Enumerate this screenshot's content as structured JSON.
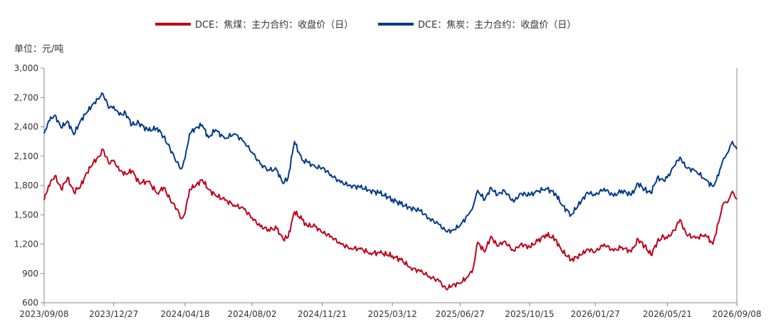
{
  "chart_data": {
    "type": "line",
    "title": "",
    "unit_label": "单位：元/吨",
    "xlabel": "",
    "ylabel": "",
    "ylim": [
      600,
      3000
    ],
    "yticks": [
      600,
      900,
      1200,
      1500,
      1800,
      2100,
      2400,
      2700,
      3000
    ],
    "ytick_labels": [
      "600",
      "900",
      "1,200",
      "1,500",
      "1,800",
      "2,100",
      "2,400",
      "2,700",
      "3,000"
    ],
    "xlim": [
      "2023-09-08",
      "2026-09-08"
    ],
    "xticks": [
      "2023-09-08",
      "2023-12-27",
      "2024-04-18",
      "2024-08-02",
      "2024-11-21",
      "2025-03-12",
      "2025-06-27",
      "2025-10-15",
      "2026-01-27",
      "2026-05-21",
      "2026-09-08"
    ],
    "xtick_labels": [
      "2023/09/08",
      "2023/12/27",
      "2024/04/18",
      "2024/08/02",
      "2024/11/21",
      "2025/03/12",
      "2025/06/27",
      "2025/10/15",
      "2026/01/27",
      "2026/05/21",
      "2026/09/08"
    ],
    "legend_position": "top-center",
    "grid": false,
    "series": [
      {
        "name": "DCE：焦煤：主力合约：收盘价（日）",
        "color": "#c0001a",
        "points": [
          [
            "2023-09-08",
            1650
          ],
          [
            "2023-09-15",
            1800
          ],
          [
            "2023-09-25",
            1900
          ],
          [
            "2023-10-05",
            1760
          ],
          [
            "2023-10-15",
            1880
          ],
          [
            "2023-10-25",
            1730
          ],
          [
            "2023-11-05",
            1800
          ],
          [
            "2023-11-15",
            1930
          ],
          [
            "2023-11-25",
            2040
          ],
          [
            "2023-12-05",
            2100
          ],
          [
            "2023-12-10",
            2170
          ],
          [
            "2023-12-20",
            2020
          ],
          [
            "2023-12-27",
            2060
          ],
          [
            "2024-01-05",
            1950
          ],
          [
            "2024-01-15",
            1920
          ],
          [
            "2024-01-25",
            1950
          ],
          [
            "2024-02-05",
            1830
          ],
          [
            "2024-02-20",
            1840
          ],
          [
            "2024-03-05",
            1720
          ],
          [
            "2024-03-15",
            1780
          ],
          [
            "2024-03-25",
            1660
          ],
          [
            "2024-04-05",
            1560
          ],
          [
            "2024-04-12",
            1460
          ],
          [
            "2024-04-18",
            1520
          ],
          [
            "2024-04-25",
            1760
          ],
          [
            "2024-05-05",
            1800
          ],
          [
            "2024-05-15",
            1860
          ],
          [
            "2024-05-25",
            1760
          ],
          [
            "2024-06-05",
            1700
          ],
          [
            "2024-06-20",
            1650
          ],
          [
            "2024-07-05",
            1600
          ],
          [
            "2024-07-20",
            1560
          ],
          [
            "2024-08-02",
            1470
          ],
          [
            "2024-08-15",
            1380
          ],
          [
            "2024-08-28",
            1350
          ],
          [
            "2024-09-10",
            1360
          ],
          [
            "2024-09-20",
            1250
          ],
          [
            "2024-09-28",
            1270
          ],
          [
            "2024-10-08",
            1530
          ],
          [
            "2024-10-20",
            1450
          ],
          [
            "2024-10-28",
            1390
          ],
          [
            "2024-11-10",
            1380
          ],
          [
            "2024-11-21",
            1320
          ],
          [
            "2024-12-05",
            1280
          ],
          [
            "2024-12-20",
            1200
          ],
          [
            "2025-01-05",
            1160
          ],
          [
            "2025-01-20",
            1150
          ],
          [
            "2025-02-05",
            1110
          ],
          [
            "2025-02-20",
            1110
          ],
          [
            "2025-03-12",
            1080
          ],
          [
            "2025-03-25",
            1040
          ],
          [
            "2025-04-10",
            960
          ],
          [
            "2025-04-25",
            920
          ],
          [
            "2025-05-10",
            870
          ],
          [
            "2025-05-25",
            820
          ],
          [
            "2025-06-05",
            740
          ],
          [
            "2025-06-15",
            780
          ],
          [
            "2025-06-27",
            800
          ],
          [
            "2025-07-10",
            870
          ],
          [
            "2025-07-18",
            960
          ],
          [
            "2025-07-25",
            1220
          ],
          [
            "2025-08-05",
            1120
          ],
          [
            "2025-08-15",
            1280
          ],
          [
            "2025-08-25",
            1180
          ],
          [
            "2025-09-05",
            1230
          ],
          [
            "2025-09-20",
            1130
          ],
          [
            "2025-10-01",
            1200
          ],
          [
            "2025-10-15",
            1170
          ],
          [
            "2025-10-28",
            1230
          ],
          [
            "2025-11-10",
            1300
          ],
          [
            "2025-11-25",
            1250
          ],
          [
            "2025-12-05",
            1130
          ],
          [
            "2025-12-20",
            1040
          ],
          [
            "2026-01-05",
            1090
          ],
          [
            "2026-01-15",
            1150
          ],
          [
            "2026-01-27",
            1120
          ],
          [
            "2026-02-10",
            1200
          ],
          [
            "2026-02-25",
            1130
          ],
          [
            "2026-03-10",
            1170
          ],
          [
            "2026-03-25",
            1120
          ],
          [
            "2026-04-05",
            1250
          ],
          [
            "2026-04-15",
            1180
          ],
          [
            "2026-04-25",
            1090
          ],
          [
            "2026-05-05",
            1220
          ],
          [
            "2026-05-15",
            1280
          ],
          [
            "2026-05-21",
            1260
          ],
          [
            "2026-06-01",
            1340
          ],
          [
            "2026-06-10",
            1450
          ],
          [
            "2026-06-20",
            1300
          ],
          [
            "2026-07-05",
            1260
          ],
          [
            "2026-07-20",
            1300
          ],
          [
            "2026-08-01",
            1200
          ],
          [
            "2026-08-10",
            1420
          ],
          [
            "2026-08-18",
            1620
          ],
          [
            "2026-08-26",
            1650
          ],
          [
            "2026-09-01",
            1740
          ],
          [
            "2026-09-08",
            1660
          ]
        ]
      },
      {
        "name": "DCE：焦炭：主力合约：收盘价（日）",
        "color": "#003a8c",
        "points": [
          [
            "2023-09-08",
            2330
          ],
          [
            "2023-09-15",
            2460
          ],
          [
            "2023-09-25",
            2520
          ],
          [
            "2023-10-05",
            2390
          ],
          [
            "2023-10-15",
            2460
          ],
          [
            "2023-10-25",
            2320
          ],
          [
            "2023-11-05",
            2470
          ],
          [
            "2023-11-15",
            2550
          ],
          [
            "2023-11-25",
            2640
          ],
          [
            "2023-12-05",
            2700
          ],
          [
            "2023-12-10",
            2740
          ],
          [
            "2023-12-20",
            2590
          ],
          [
            "2023-12-27",
            2610
          ],
          [
            "2024-01-05",
            2520
          ],
          [
            "2024-01-15",
            2540
          ],
          [
            "2024-01-25",
            2420
          ],
          [
            "2024-02-05",
            2440
          ],
          [
            "2024-02-20",
            2360
          ],
          [
            "2024-03-05",
            2390
          ],
          [
            "2024-03-15",
            2300
          ],
          [
            "2024-03-25",
            2180
          ],
          [
            "2024-04-05",
            2040
          ],
          [
            "2024-04-12",
            1970
          ],
          [
            "2024-04-18",
            2080
          ],
          [
            "2024-04-25",
            2330
          ],
          [
            "2024-05-05",
            2390
          ],
          [
            "2024-05-15",
            2420
          ],
          [
            "2024-05-25",
            2290
          ],
          [
            "2024-06-05",
            2370
          ],
          [
            "2024-06-20",
            2280
          ],
          [
            "2024-07-05",
            2330
          ],
          [
            "2024-07-20",
            2250
          ],
          [
            "2024-08-02",
            2140
          ],
          [
            "2024-08-15",
            2020
          ],
          [
            "2024-08-28",
            1960
          ],
          [
            "2024-09-10",
            1960
          ],
          [
            "2024-09-20",
            1820
          ],
          [
            "2024-09-28",
            1880
          ],
          [
            "2024-10-08",
            2250
          ],
          [
            "2024-10-20",
            2060
          ],
          [
            "2024-10-28",
            2040
          ],
          [
            "2024-11-10",
            1990
          ],
          [
            "2024-11-21",
            1980
          ],
          [
            "2024-12-05",
            1910
          ],
          [
            "2024-12-20",
            1830
          ],
          [
            "2025-01-05",
            1800
          ],
          [
            "2025-01-20",
            1780
          ],
          [
            "2025-02-05",
            1750
          ],
          [
            "2025-02-20",
            1720
          ],
          [
            "2025-03-12",
            1660
          ],
          [
            "2025-03-25",
            1610
          ],
          [
            "2025-04-10",
            1570
          ],
          [
            "2025-04-25",
            1540
          ],
          [
            "2025-05-10",
            1460
          ],
          [
            "2025-05-25",
            1400
          ],
          [
            "2025-06-05",
            1330
          ],
          [
            "2025-06-15",
            1340
          ],
          [
            "2025-06-27",
            1390
          ],
          [
            "2025-07-10",
            1500
          ],
          [
            "2025-07-18",
            1590
          ],
          [
            "2025-07-25",
            1750
          ],
          [
            "2025-08-05",
            1650
          ],
          [
            "2025-08-15",
            1780
          ],
          [
            "2025-08-25",
            1700
          ],
          [
            "2025-09-05",
            1750
          ],
          [
            "2025-09-20",
            1630
          ],
          [
            "2025-10-01",
            1720
          ],
          [
            "2025-10-15",
            1700
          ],
          [
            "2025-10-28",
            1740
          ],
          [
            "2025-11-10",
            1770
          ],
          [
            "2025-11-25",
            1720
          ],
          [
            "2025-12-05",
            1600
          ],
          [
            "2025-12-20",
            1500
          ],
          [
            "2026-01-05",
            1640
          ],
          [
            "2026-01-15",
            1730
          ],
          [
            "2026-01-27",
            1700
          ],
          [
            "2026-02-10",
            1770
          ],
          [
            "2026-02-25",
            1690
          ],
          [
            "2026-03-10",
            1750
          ],
          [
            "2026-03-25",
            1700
          ],
          [
            "2026-04-05",
            1820
          ],
          [
            "2026-04-15",
            1760
          ],
          [
            "2026-04-25",
            1720
          ],
          [
            "2026-05-05",
            1880
          ],
          [
            "2026-05-15",
            1850
          ],
          [
            "2026-05-21",
            1880
          ],
          [
            "2026-06-01",
            2000
          ],
          [
            "2026-06-10",
            2090
          ],
          [
            "2026-06-20",
            1980
          ],
          [
            "2026-07-05",
            1950
          ],
          [
            "2026-07-20",
            1860
          ],
          [
            "2026-08-01",
            1790
          ],
          [
            "2026-08-10",
            1900
          ],
          [
            "2026-08-18",
            2080
          ],
          [
            "2026-08-26",
            2150
          ],
          [
            "2026-09-01",
            2250
          ],
          [
            "2026-09-08",
            2170
          ]
        ]
      }
    ]
  }
}
